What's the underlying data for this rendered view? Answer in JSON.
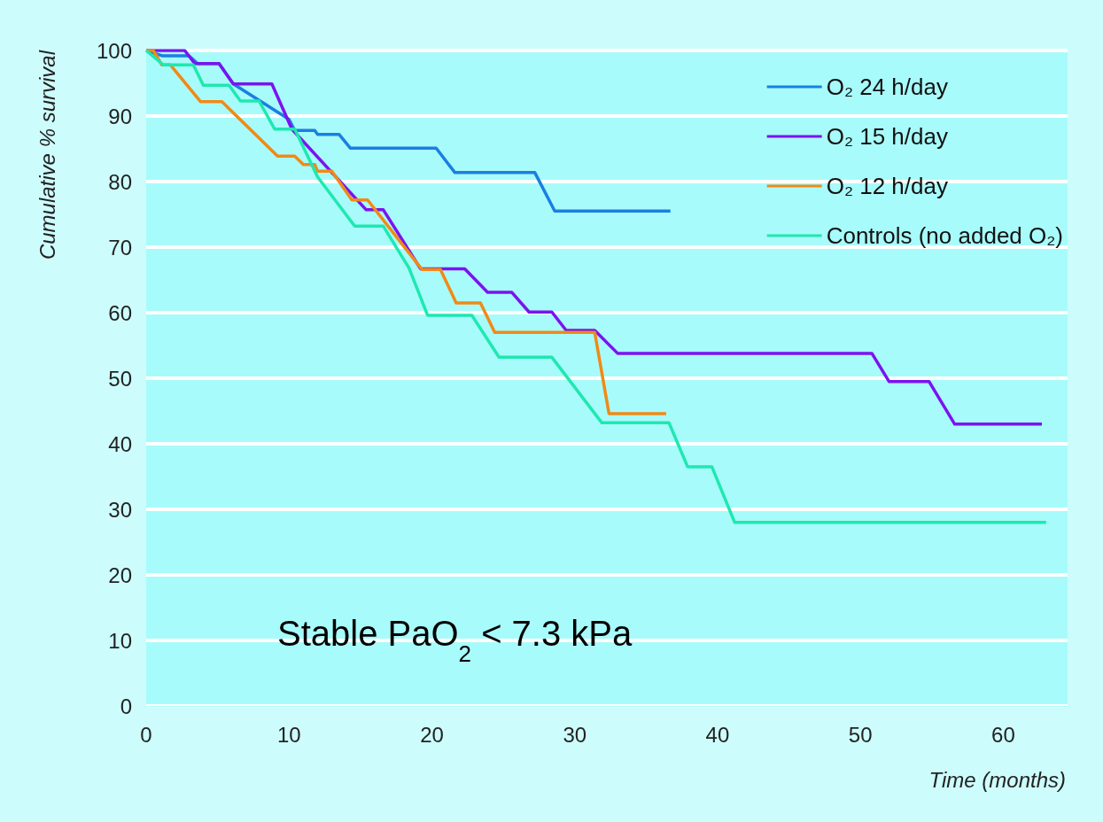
{
  "chart_data": {
    "type": "line",
    "xlabel": "Time (months)",
    "ylabel": "Cumulative % survival",
    "annotations": [
      "Stable PaO$_{2}$ < 7.3 kPa"
    ],
    "xlim": [
      0,
      64.5
    ],
    "xticks": [
      0,
      10,
      20,
      30,
      40,
      50,
      60
    ],
    "ylim": [
      0,
      100
    ],
    "yticks": [
      0,
      10,
      20,
      30,
      40,
      50,
      60,
      70,
      80,
      90,
      100
    ],
    "grid": "y",
    "legend": "top right",
    "marker": "none",
    "line_style": "solid",
    "series": [
      {
        "name": "O₂ 24 h/day",
        "color": "#1a7fe0",
        "x": [
          0,
          1.1,
          3,
          3.6,
          5.1,
          6.1,
          10.0,
          10.4,
          11.8,
          12.0,
          13.5,
          14.3,
          20.3,
          21.6,
          27.2,
          28.6,
          36.7
        ],
        "values": [
          100,
          99.2,
          99.2,
          98,
          98,
          94.9,
          89.5,
          87.8,
          87.8,
          87.2,
          87.2,
          85.1,
          85.1,
          81.4,
          81.4,
          75.5,
          75.5
        ]
      },
      {
        "name": "O₂ 15 h/day",
        "color": "#7b13f0",
        "x": [
          0,
          2.7,
          3.4,
          5.1,
          6.1,
          8.8,
          10.2,
          15.4,
          16.6,
          19.2,
          22.3,
          23.9,
          25.6,
          26.8,
          28.4,
          29.4,
          31.4,
          33.0,
          50.8,
          52.0,
          54.8,
          56.6,
          62.7
        ],
        "values": [
          100,
          100,
          98,
          98,
          94.9,
          94.9,
          88,
          75.7,
          75.7,
          66.7,
          66.7,
          63.1,
          63.1,
          60.1,
          60.1,
          57.3,
          57.3,
          53.8,
          53.8,
          49.5,
          49.5,
          43,
          43
        ]
      },
      {
        "name": "O₂ 12 h/day",
        "color": "#f08a16",
        "x": [
          0,
          0.5,
          1.1,
          1.7,
          3.8,
          5.3,
          9.2,
          10.4,
          11.0,
          11.8,
          12.0,
          13.0,
          14.4,
          15.5,
          19.3,
          20.6,
          21.7,
          23.4,
          24.4,
          31.4,
          32.4,
          36.4
        ],
        "values": [
          100,
          100,
          97.8,
          97.8,
          92.2,
          92.2,
          83.9,
          83.9,
          82.6,
          82.6,
          81.6,
          81.6,
          77.2,
          77.2,
          66.6,
          66.6,
          61.5,
          61.5,
          57,
          57,
          44.6,
          44.6
        ]
      },
      {
        "name": "Controls (no added O₂)",
        "color": "#1ee8b0",
        "x": [
          0,
          1.2,
          3.3,
          4.0,
          5.8,
          6.6,
          7.9,
          9.0,
          10.4,
          12.0,
          14.6,
          16.6,
          18.4,
          19.7,
          22.8,
          24.7,
          28.4,
          31.9,
          36.6,
          37.9,
          39.6,
          41.2,
          63.0
        ],
        "values": [
          100,
          97.8,
          97.8,
          94.7,
          94.7,
          92.3,
          92.3,
          88,
          88,
          80.7,
          73.2,
          73.2,
          66.8,
          59.6,
          59.6,
          53.2,
          53.2,
          43.2,
          43.2,
          36.5,
          36.5,
          28,
          28
        ]
      }
    ]
  }
}
